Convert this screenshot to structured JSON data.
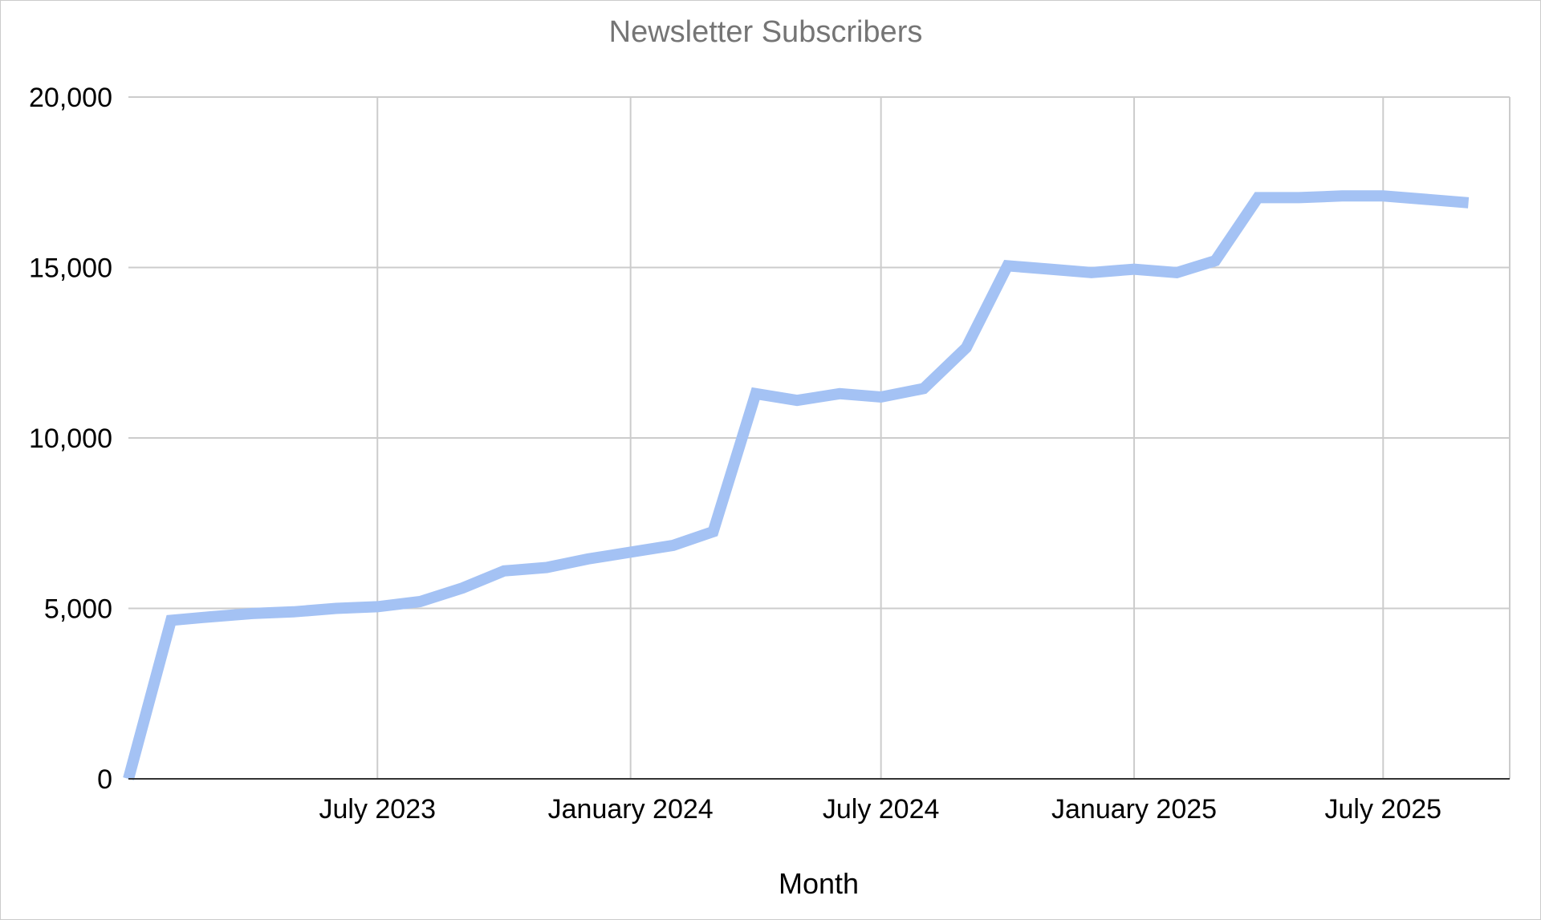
{
  "chart_data": {
    "type": "line",
    "title": "Newsletter Subscribers",
    "xlabel": "Month",
    "ylabel": "",
    "ylim": [
      0,
      20000
    ],
    "y_ticks": [
      {
        "value": 0,
        "label": "0"
      },
      {
        "value": 5000,
        "label": "5,000"
      },
      {
        "value": 10000,
        "label": "10,000"
      },
      {
        "value": 15000,
        "label": "15,000"
      },
      {
        "value": 20000,
        "label": "20,000"
      }
    ],
    "x_range": [
      "2023-01-01",
      "2025-10-01"
    ],
    "x_ticks": [
      {
        "date": "2023-07-01",
        "label": "July 2023"
      },
      {
        "date": "2024-01-01",
        "label": "January 2024"
      },
      {
        "date": "2024-07-01",
        "label": "July 2024"
      },
      {
        "date": "2025-01-01",
        "label": "January 2025"
      },
      {
        "date": "2025-07-01",
        "label": "July 2025"
      }
    ],
    "grid": true,
    "legend": "none",
    "colors": {
      "line": "#a4c2f4",
      "grid": "#cccccc",
      "axis": "#333333"
    },
    "series": [
      {
        "x": [
          "2023-01-01",
          "2023-02-01",
          "2023-03-01",
          "2023-04-01",
          "2023-05-01",
          "2023-06-01",
          "2023-07-01",
          "2023-08-01",
          "2023-09-01",
          "2023-10-01",
          "2023-11-01",
          "2023-12-01",
          "2024-01-01",
          "2024-02-01",
          "2024-03-01",
          "2024-04-01",
          "2024-05-01",
          "2024-06-01",
          "2024-07-01",
          "2024-08-01",
          "2024-09-01",
          "2024-10-01",
          "2024-11-01",
          "2024-12-01",
          "2025-01-01",
          "2025-02-01",
          "2025-03-01",
          "2025-04-01",
          "2025-05-01",
          "2025-06-01",
          "2025-07-01",
          "2025-08-01",
          "2025-09-01"
        ],
        "values": [
          0,
          4650,
          4750,
          4850,
          4900,
          5000,
          5050,
          5200,
          5600,
          6100,
          6200,
          6450,
          6650,
          6850,
          7250,
          11300,
          11100,
          11300,
          11200,
          11450,
          12650,
          15050,
          14950,
          14850,
          14950,
          14850,
          15200,
          17050,
          17050,
          17100,
          17100,
          17000,
          16900
        ]
      }
    ]
  }
}
